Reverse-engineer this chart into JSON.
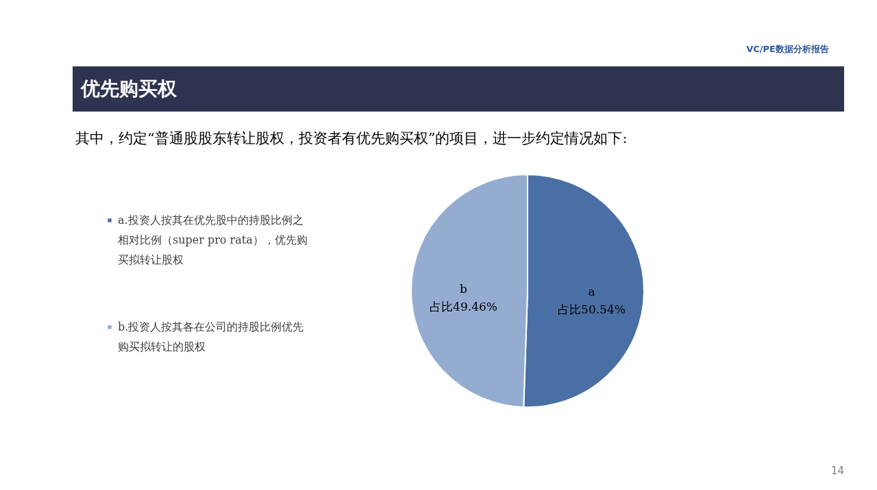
{
  "chart_data": {
    "type": "pie",
    "title": "优先购买权",
    "subtitle": "其中，约定“普通股股东转让股权，投资者有优先购买权”的项目，进一步约定情况如下:",
    "categories": [
      "a.投资人按其在优先股中的持股比例之相对比例（super pro rata），优先购买拟转让股权",
      "b.投资人按其各在公司的持股比例优先购买拟转让的股权"
    ],
    "values": [
      50.54,
      49.46
    ],
    "colors": [
      "#4a6fa5",
      "#94acd0"
    ],
    "value_labels": [
      "a\n占比50.54%",
      "b\n占比49.46%"
    ],
    "legend": "left",
    "annotations": [
      "VC/PE数据分析报告",
      "14"
    ]
  }
}
